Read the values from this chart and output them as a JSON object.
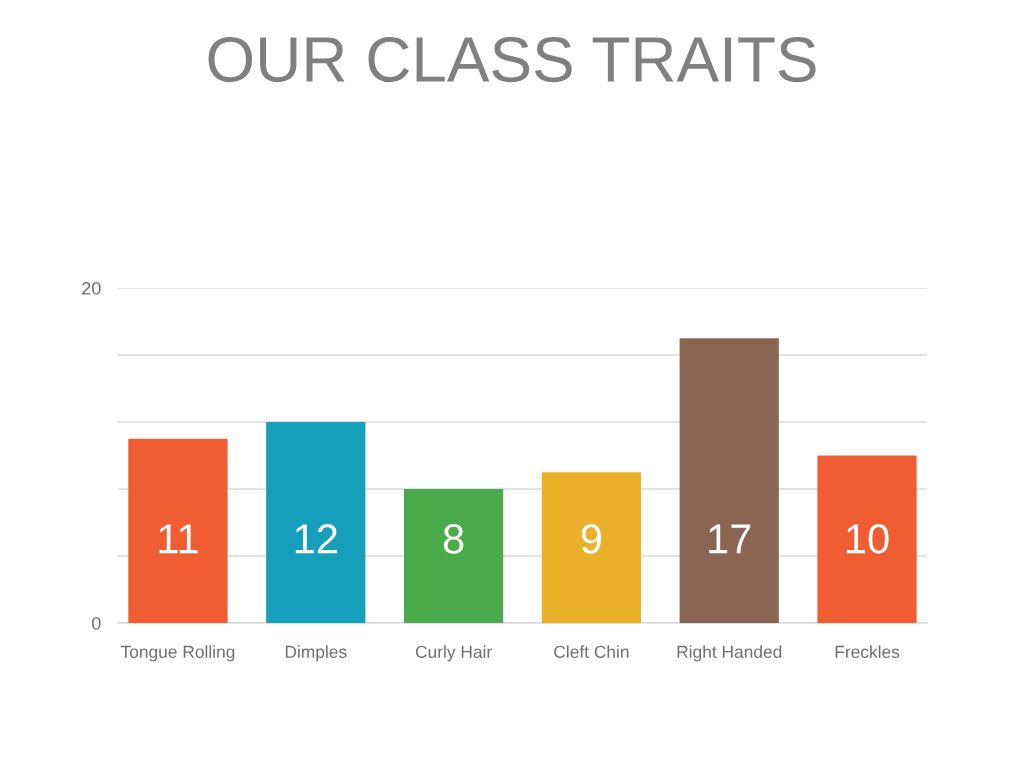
{
  "chart_data": {
    "type": "bar",
    "title": "OUR CLASS TRAITS",
    "categories": [
      "Tongue Rolling",
      "Dimples",
      "Curly Hair",
      "Cleft Chin",
      "Right Handed",
      "Freckles"
    ],
    "values": [
      11,
      12,
      8,
      9,
      17,
      10
    ],
    "colors": [
      "#f05d33",
      "#169fba",
      "#4aab4b",
      "#ebb02a",
      "#8a6552",
      "#f05d33"
    ],
    "ylim": [
      0,
      20
    ],
    "yticks": [
      0,
      {
        "value": 4,
        "label": null
      },
      {
        "value": 8,
        "label": null
      },
      {
        "value": 12,
        "label": null
      },
      {
        "value": 16,
        "label": null
      },
      20
    ],
    "grid": "y",
    "data_labels": true
  }
}
